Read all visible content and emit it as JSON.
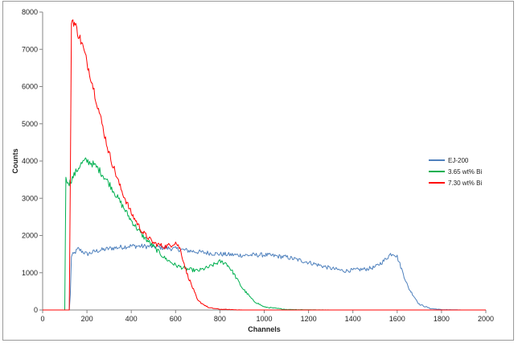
{
  "chart_data": {
    "type": "line",
    "title": "",
    "xlabel": "Channels",
    "ylabel": "Counts",
    "xlim": [
      0,
      2000
    ],
    "ylim": [
      0,
      8000
    ],
    "xticks": [
      0,
      200,
      400,
      600,
      800,
      1000,
      1200,
      1400,
      1600,
      1800,
      2000
    ],
    "yticks": [
      0,
      1000,
      2000,
      3000,
      4000,
      5000,
      6000,
      7000,
      8000
    ],
    "grid": false,
    "legend_position": "right",
    "series": [
      {
        "name": "EJ-200",
        "color": "#4f81bd",
        "x": [
          0,
          120,
          125,
          130,
          140,
          160,
          180,
          200,
          240,
          300,
          400,
          500,
          600,
          700,
          800,
          900,
          1000,
          1100,
          1200,
          1300,
          1360,
          1400,
          1460,
          1500,
          1540,
          1570,
          1585,
          1600,
          1620,
          1650,
          1700,
          1750,
          1800,
          1900,
          2000
        ],
        "y": [
          0,
          0,
          400,
          1450,
          1500,
          1640,
          1570,
          1500,
          1580,
          1650,
          1720,
          1700,
          1640,
          1560,
          1500,
          1470,
          1480,
          1420,
          1280,
          1120,
          1050,
          1070,
          1100,
          1150,
          1320,
          1500,
          1520,
          1430,
          1100,
          600,
          150,
          40,
          10,
          0,
          0
        ]
      },
      {
        "name": "3.65 wt% Bi",
        "color": "#00b050",
        "x": [
          0,
          100,
          105,
          110,
          115,
          120,
          130,
          150,
          170,
          190,
          200,
          220,
          250,
          300,
          350,
          400,
          450,
          500,
          550,
          600,
          650,
          700,
          750,
          800,
          830,
          860,
          900,
          950,
          1000,
          1100,
          1200,
          1300,
          2000
        ],
        "y": [
          0,
          0,
          3500,
          3450,
          3500,
          3400,
          3500,
          3700,
          3900,
          4000,
          4000,
          3950,
          3800,
          3400,
          2900,
          2400,
          2000,
          1700,
          1400,
          1200,
          1100,
          1050,
          1150,
          1300,
          1250,
          1000,
          600,
          250,
          80,
          15,
          5,
          0,
          0
        ]
      },
      {
        "name": "7.30 wt% Bi",
        "color": "#ff0000",
        "x": [
          0,
          120,
          125,
          130,
          140,
          150,
          180,
          220,
          260,
          300,
          350,
          400,
          450,
          500,
          550,
          580,
          600,
          620,
          650,
          700,
          750,
          800,
          900,
          2000
        ],
        "y": [
          0,
          0,
          3300,
          7800,
          7750,
          7600,
          7100,
          6200,
          5200,
          4200,
          3300,
          2600,
          2100,
          1800,
          1700,
          1750,
          1820,
          1650,
          1000,
          250,
          60,
          20,
          0,
          0
        ]
      }
    ]
  }
}
